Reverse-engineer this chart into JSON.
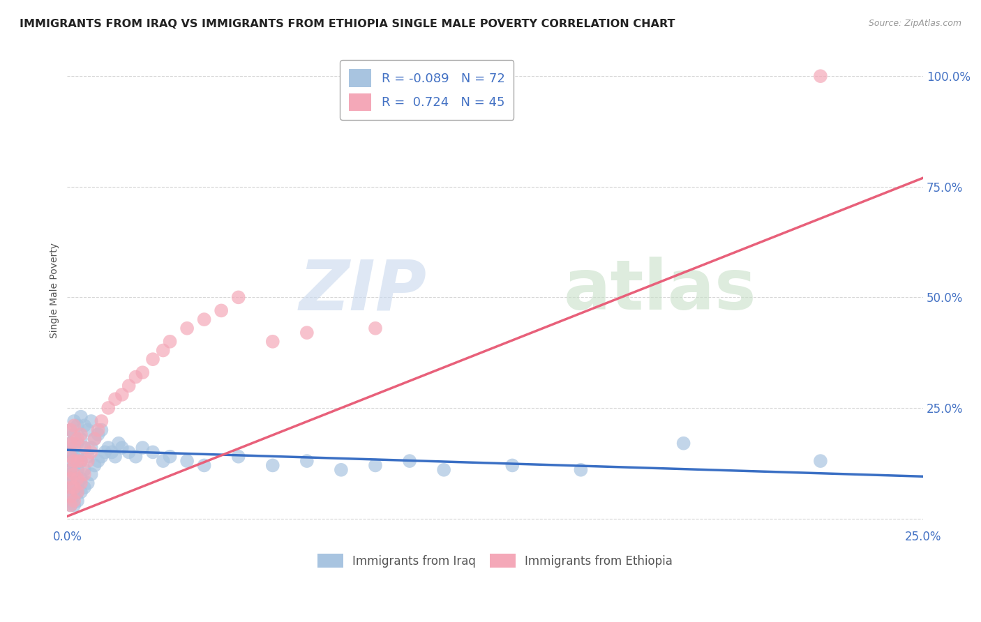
{
  "title": "IMMIGRANTS FROM IRAQ VS IMMIGRANTS FROM ETHIOPIA SINGLE MALE POVERTY CORRELATION CHART",
  "source": "Source: ZipAtlas.com",
  "ylabel": "Single Male Poverty",
  "xlim": [
    0.0,
    0.25
  ],
  "ylim": [
    -0.02,
    1.05
  ],
  "yticks": [
    0.0,
    0.25,
    0.5,
    0.75,
    1.0
  ],
  "ytick_labels": [
    "",
    "25.0%",
    "50.0%",
    "75.0%",
    "100.0%"
  ],
  "xticks": [
    0.0,
    0.25
  ],
  "xtick_labels": [
    "0.0%",
    "25.0%"
  ],
  "legend_r_iraq": "-0.089",
  "legend_n_iraq": "72",
  "legend_r_ethiopia": " 0.724",
  "legend_n_ethiopia": "45",
  "iraq_color": "#a8c4e0",
  "ethiopia_color": "#f4a8b8",
  "iraq_line_color": "#3a6fc4",
  "ethiopia_line_color": "#e8607a",
  "background_color": "#ffffff",
  "iraq_trend_x0": 0.0,
  "iraq_trend_y0": 0.155,
  "iraq_trend_x1": 0.25,
  "iraq_trend_y1": 0.095,
  "ethiopia_trend_x0": 0.0,
  "ethiopia_trend_y0": 0.005,
  "ethiopia_trend_x1": 0.25,
  "ethiopia_trend_y1": 0.77,
  "iraq_x": [
    0.001,
    0.001,
    0.001,
    0.001,
    0.001,
    0.001,
    0.001,
    0.001,
    0.001,
    0.001,
    0.002,
    0.002,
    0.002,
    0.002,
    0.002,
    0.002,
    0.002,
    0.002,
    0.002,
    0.003,
    0.003,
    0.003,
    0.003,
    0.003,
    0.003,
    0.003,
    0.004,
    0.004,
    0.004,
    0.004,
    0.004,
    0.005,
    0.005,
    0.005,
    0.005,
    0.006,
    0.006,
    0.006,
    0.007,
    0.007,
    0.007,
    0.008,
    0.008,
    0.009,
    0.009,
    0.01,
    0.01,
    0.011,
    0.012,
    0.013,
    0.014,
    0.015,
    0.016,
    0.018,
    0.02,
    0.022,
    0.025,
    0.028,
    0.03,
    0.035,
    0.04,
    0.05,
    0.06,
    0.07,
    0.08,
    0.09,
    0.1,
    0.11,
    0.13,
    0.15,
    0.18,
    0.22
  ],
  "iraq_y": [
    0.03,
    0.05,
    0.07,
    0.08,
    0.1,
    0.11,
    0.13,
    0.15,
    0.17,
    0.2,
    0.03,
    0.05,
    0.07,
    0.09,
    0.12,
    0.14,
    0.16,
    0.19,
    0.22,
    0.04,
    0.06,
    0.08,
    0.11,
    0.14,
    0.17,
    0.21,
    0.06,
    0.09,
    0.13,
    0.18,
    0.23,
    0.07,
    0.11,
    0.16,
    0.21,
    0.08,
    0.14,
    0.2,
    0.1,
    0.16,
    0.22,
    0.12,
    0.18,
    0.13,
    0.19,
    0.14,
    0.2,
    0.15,
    0.16,
    0.15,
    0.14,
    0.17,
    0.16,
    0.15,
    0.14,
    0.16,
    0.15,
    0.13,
    0.14,
    0.13,
    0.12,
    0.14,
    0.12,
    0.13,
    0.11,
    0.12,
    0.13,
    0.11,
    0.12,
    0.11,
    0.17,
    0.13
  ],
  "ethiopia_x": [
    0.001,
    0.001,
    0.001,
    0.001,
    0.001,
    0.001,
    0.001,
    0.001,
    0.002,
    0.002,
    0.002,
    0.002,
    0.002,
    0.002,
    0.003,
    0.003,
    0.003,
    0.003,
    0.004,
    0.004,
    0.004,
    0.005,
    0.005,
    0.006,
    0.007,
    0.008,
    0.009,
    0.01,
    0.012,
    0.014,
    0.016,
    0.018,
    0.02,
    0.022,
    0.025,
    0.028,
    0.03,
    0.035,
    0.04,
    0.045,
    0.05,
    0.06,
    0.07,
    0.09,
    0.22
  ],
  "ethiopia_y": [
    0.03,
    0.05,
    0.07,
    0.09,
    0.11,
    0.14,
    0.17,
    0.2,
    0.04,
    0.07,
    0.1,
    0.13,
    0.17,
    0.21,
    0.06,
    0.09,
    0.13,
    0.18,
    0.08,
    0.13,
    0.19,
    0.1,
    0.16,
    0.13,
    0.15,
    0.18,
    0.2,
    0.22,
    0.25,
    0.27,
    0.28,
    0.3,
    0.32,
    0.33,
    0.36,
    0.38,
    0.4,
    0.43,
    0.45,
    0.47,
    0.5,
    0.4,
    0.42,
    0.43,
    1.0
  ]
}
